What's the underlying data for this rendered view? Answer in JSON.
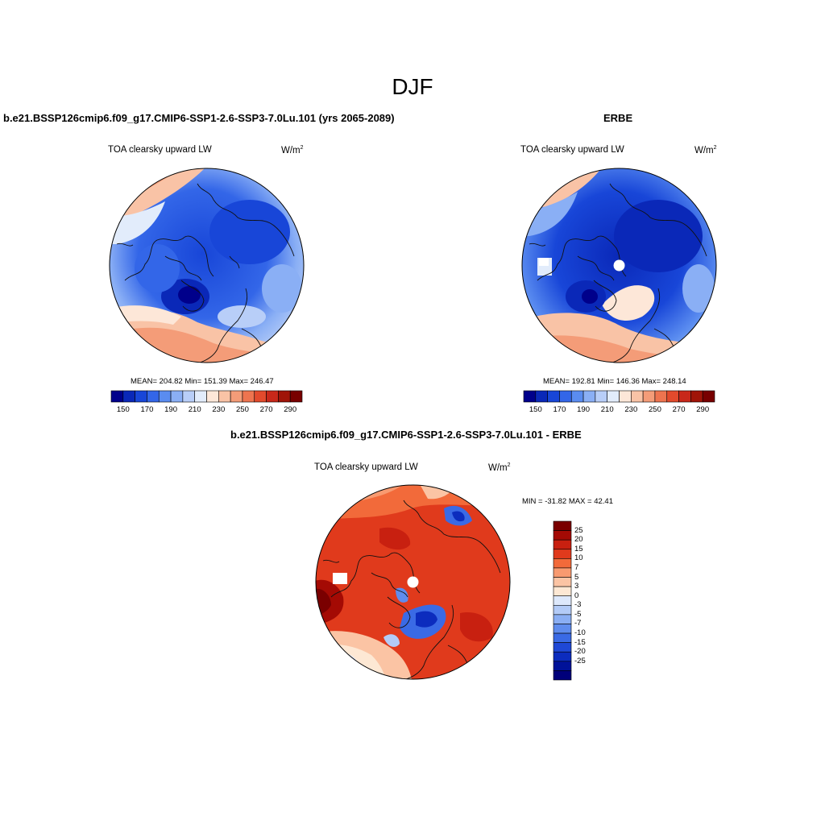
{
  "title": "DJF",
  "panels": [
    {
      "id": "model",
      "title": "b.e21.BSSP126cmip6.f09_g17.CMIP6-SSP1-2.6-SSP3-7.0Lu.101 (yrs 2065-2089)",
      "left_label": "TOA clearsky upward LW",
      "units": "W/m",
      "units_exp": "2",
      "stats": "MEAN= 204.82  Min= 151.39  Max= 246.47",
      "mean": 204.82,
      "min": 151.39,
      "max": 246.47
    },
    {
      "id": "obs",
      "title": "ERBE",
      "left_label": "TOA clearsky upward LW",
      "units": "W/m",
      "units_exp": "2",
      "stats": "MEAN= 192.81  Min= 146.36  Max= 248.14",
      "mean": 192.81,
      "min": 146.36,
      "max": 248.14
    }
  ],
  "diff_panel": {
    "title": "b.e21.BSSP126cmip6.f09_g17.CMIP6-SSP1-2.6-SSP3-7.0Lu.101 - ERBE",
    "left_label": "TOA clearsky upward LW",
    "units": "W/m",
    "units_exp": "2",
    "stats": "MIN = -31.82 MAX =  42.41",
    "min": -31.82,
    "max": 42.41
  },
  "colorbar_main": {
    "colors": [
      "#00008b",
      "#0a28b8",
      "#1846d8",
      "#3366e8",
      "#5a8cf0",
      "#8aaff5",
      "#b8cef8",
      "#e2ecfb",
      "#fde7d8",
      "#f9c3a6",
      "#f49c78",
      "#ee744f",
      "#e24a2c",
      "#c8281a",
      "#a01408",
      "#780000"
    ],
    "tick_labels": [
      "150",
      "170",
      "190",
      "210",
      "230",
      "250",
      "270",
      "290"
    ]
  },
  "colorbar_diff": {
    "colors": [
      "#7a0000",
      "#a40a04",
      "#c82010",
      "#e03a1c",
      "#f26a3a",
      "#f89a70",
      "#fbc4a4",
      "#fde8d4",
      "#dde8fb",
      "#b3cbf7",
      "#8aaef3",
      "#5f8ced",
      "#3a6ae5",
      "#1f48d6",
      "#0c2cbe",
      "#001299",
      "#00007a"
    ],
    "tick_labels": [
      "25",
      "20",
      "15",
      "10",
      "7",
      "5",
      "3",
      "0",
      "-3",
      "-5",
      "-7",
      "-10",
      "-15",
      "-20",
      "-25"
    ]
  }
}
